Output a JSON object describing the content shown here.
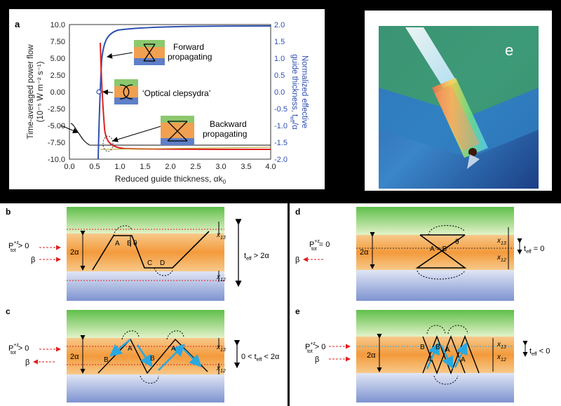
{
  "panel_a": {
    "letter": "a",
    "left_ticks": [
      "10.0",
      "7.50",
      "5.00",
      "2.50",
      "0.00",
      "-2.50",
      "-5.00",
      "-7.50",
      "-10.0"
    ],
    "right_ticks": [
      "2.0",
      "1.5",
      "1.0",
      "0.5",
      "0.0",
      "-0.5",
      "-1.0",
      "-1.5",
      "-2.0"
    ],
    "x_ticks": [
      "0.0",
      "0.5",
      "1.0",
      "1.5",
      "2.0",
      "2.5",
      "3.0",
      "3.5",
      "4.0"
    ],
    "ylabel_left_1": "Time-averaged power flow",
    "ylabel_left_2": "(10⁻⁵ W m⁻² s⁻¹)",
    "ylabel_right_1": "Normalized effective",
    "ylabel_right_2": "guide thickness, t",
    "ylabel_right_sub": "eff",
    "ylabel_right_3": "/α",
    "xlabel": "Reduced guide thickness, αk",
    "xlabel_sub": "0",
    "ann_forward_1": "Forward",
    "ann_forward_2": "propagating",
    "ann_clepsydra": "‘Optical clepsydra’",
    "ann_backward_1": "Backward",
    "ann_backward_2": "propagating"
  },
  "panel_e_top": {
    "letter": "e"
  },
  "panel_b": {
    "letter": "b",
    "p_label": "P",
    "p_sup": "+z",
    "p_sub": "tot",
    "p_cond": " > 0",
    "beta": "β",
    "thickness": "2α",
    "A": "A",
    "B": "B",
    "C": "C",
    "D": "D",
    "theta": "θ",
    "x13": "x",
    "x13_sub": "13",
    "x12": "x",
    "x12_sub": "12",
    "teff_main": "t",
    "teff_sub": "eff",
    "teff_cond": " > 2α"
  },
  "panel_c": {
    "letter": "c",
    "p_label": "P",
    "p_sup": "+z",
    "p_sub": "tot",
    "p_cond": " > 0",
    "beta": "β",
    "thickness": "2α",
    "A": "A",
    "B": "B",
    "x13": "x",
    "x13_sub": "13",
    "x12": "x",
    "x12_sub": "12",
    "teff_pre": "0 < t",
    "teff_sub": "eff",
    "teff_cond": " < 2α"
  },
  "panel_d": {
    "letter": "d",
    "p_label": "P",
    "p_sup": "+z",
    "p_sub": "tot",
    "p_cond": " = 0",
    "beta": "β",
    "thickness": "2α",
    "AB": "A = B",
    "theta": "θ",
    "x13": "x",
    "x13_sub": "13",
    "x12": "x",
    "x12_sub": "12",
    "teff_main": "t",
    "teff_sub": "eff",
    "teff_cond": " = 0"
  },
  "panel_e": {
    "letter": "e",
    "p_label": "P",
    "p_sup": "+z",
    "p_sub": "tot",
    "p_cond": " > 0",
    "beta": "β",
    "thickness": "2α",
    "A": "A",
    "B": "B",
    "x13": "x",
    "x13_sub": "13",
    "x12": "x",
    "x12_sub": "12",
    "teff_main": "t",
    "teff_sub": "eff",
    "teff_cond": " < 0"
  },
  "colors": {
    "green_cladding": "#9fd27d",
    "orange_core": "#f3a65a",
    "blue_substrate": "#8fa3d6",
    "red_arrow": "#e21d1d",
    "blue_curve": "#2f4fb0",
    "red_curve": "#e02020",
    "cyan_ray": "#29a9e0"
  }
}
